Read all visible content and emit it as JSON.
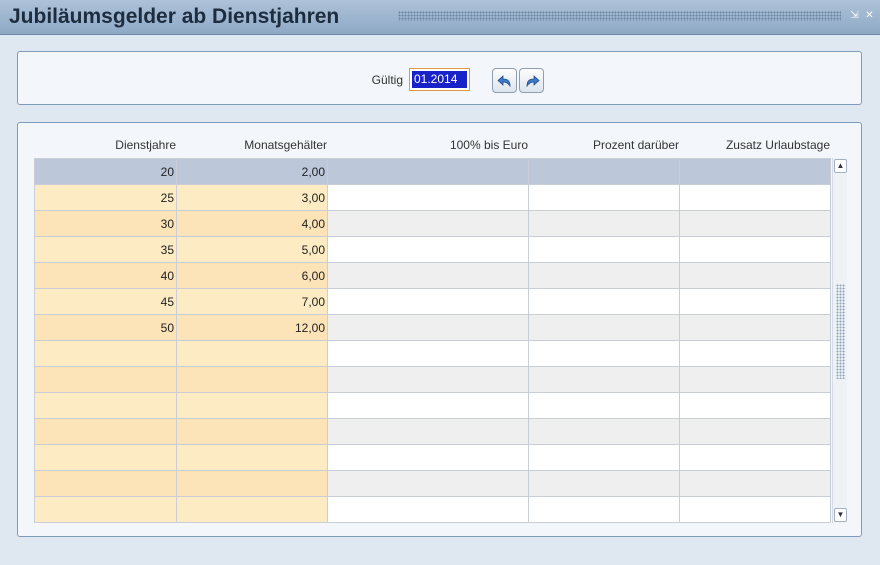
{
  "window": {
    "title": "Jubiläumsgelder ab Dienstjahren",
    "controls": {
      "minimize": "⇲",
      "close": "✕"
    }
  },
  "filter": {
    "label": "Gültig",
    "date_value": "01.2014",
    "back_icon": "undo-arrow-icon",
    "forward_icon": "redo-arrow-icon"
  },
  "grid": {
    "columns": [
      "Dienstjahre",
      "Monatsgehälter",
      "100% bis Euro",
      "Prozent darüber",
      "Zusatz Urlaubstage"
    ],
    "rows": [
      [
        "20",
        "2,00",
        "",
        "",
        ""
      ],
      [
        "25",
        "3,00",
        "",
        "",
        ""
      ],
      [
        "30",
        "4,00",
        "",
        "",
        ""
      ],
      [
        "35",
        "5,00",
        "",
        "",
        ""
      ],
      [
        "40",
        "6,00",
        "",
        "",
        ""
      ],
      [
        "45",
        "7,00",
        "",
        "",
        ""
      ],
      [
        "50",
        "12,00",
        "",
        "",
        ""
      ],
      [
        "",
        "",
        "",
        "",
        ""
      ],
      [
        "",
        "",
        "",
        "",
        ""
      ],
      [
        "",
        "",
        "",
        "",
        ""
      ],
      [
        "",
        "",
        "",
        "",
        ""
      ],
      [
        "",
        "",
        "",
        "",
        ""
      ],
      [
        "",
        "",
        "",
        "",
        ""
      ],
      [
        "",
        "",
        "",
        "",
        ""
      ]
    ],
    "selected_row": 0
  },
  "colors": {
    "titlebar": "#8ea9c6",
    "highlight_cell": "#fdebc4",
    "selected_row": "#bcc8d9",
    "date_selection": "#1822c8",
    "input_focus_border": "#e09a3e"
  }
}
